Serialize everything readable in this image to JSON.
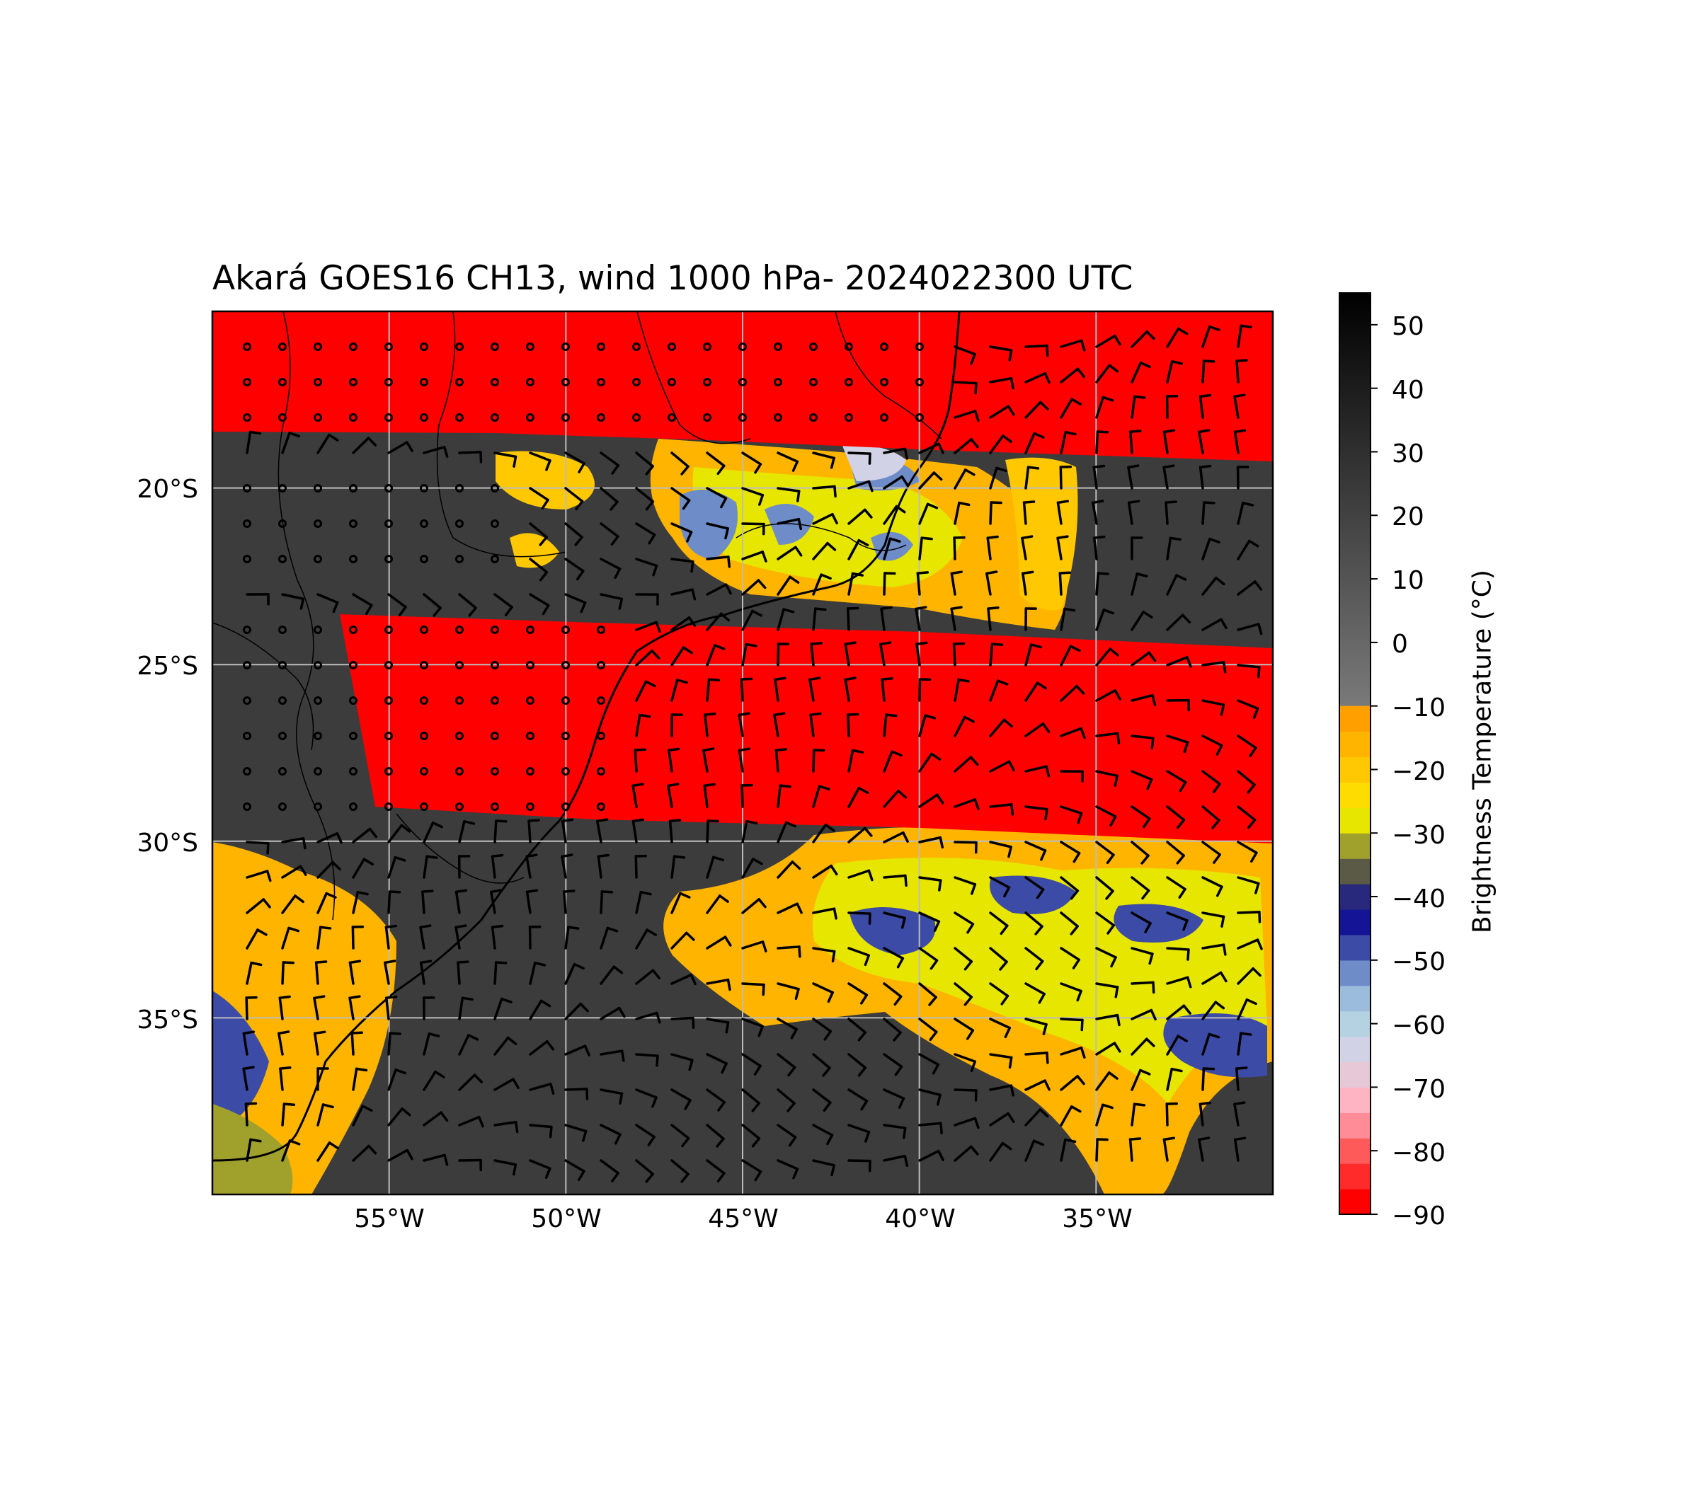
{
  "title": "Akará GOES16 CH13, wind 1000 hPa- 2024022300 UTC",
  "map": {
    "lon_range": [
      -60,
      -30
    ],
    "lat_range": [
      -40,
      -15
    ],
    "lat_ticks": [
      {
        "value": -20,
        "label": "20°S"
      },
      {
        "value": -25,
        "label": "25°S"
      },
      {
        "value": -30,
        "label": "30°S"
      },
      {
        "value": -35,
        "label": "35°S"
      }
    ],
    "lon_ticks": [
      {
        "value": -55,
        "label": "55°W"
      },
      {
        "value": -50,
        "label": "50°W"
      },
      {
        "value": -45,
        "label": "45°W"
      },
      {
        "value": -40,
        "label": "40°W"
      },
      {
        "value": -35,
        "label": "35°W"
      }
    ],
    "gridlines": true,
    "colors": {
      "no_data_swath": "#ff0000",
      "background_cloud_free": "#3c3c3c",
      "gridline": "#bdbdbd",
      "wind_barb": "#000000"
    },
    "layers": [
      "brightness temperature (GOES16 CH13)",
      "wind barbs 1000 hPa",
      "coastlines",
      "political borders"
    ]
  },
  "colorbar": {
    "label": "Brightness Temperature (°C)",
    "range": [
      -90,
      55
    ],
    "ticks": [
      "50",
      "40",
      "30",
      "20",
      "10",
      "0",
      "−10",
      "−20",
      "−30",
      "−40",
      "−50",
      "−60",
      "−70",
      "−80",
      "−90"
    ],
    "segments": [
      {
        "from": -90,
        "to": -86,
        "color": "#ff0000"
      },
      {
        "from": -86,
        "to": -82,
        "color": "#ff2a2a"
      },
      {
        "from": -82,
        "to": -78,
        "color": "#ff5a5a"
      },
      {
        "from": -78,
        "to": -74,
        "color": "#ff8c96"
      },
      {
        "from": -74,
        "to": -70,
        "color": "#ffb4c3"
      },
      {
        "from": -70,
        "to": -66,
        "color": "#e6c8d7"
      },
      {
        "from": -66,
        "to": -62,
        "color": "#d2d2e6"
      },
      {
        "from": -62,
        "to": -58,
        "color": "#b4d2e1"
      },
      {
        "from": -58,
        "to": -54,
        "color": "#9bbcdc"
      },
      {
        "from": -54,
        "to": -50,
        "color": "#6e8cc8"
      },
      {
        "from": -50,
        "to": -46,
        "color": "#3c4ba5"
      },
      {
        "from": -46,
        "to": -42,
        "color": "#141496"
      },
      {
        "from": -42,
        "to": -38,
        "color": "#28287d"
      },
      {
        "from": -38,
        "to": -34,
        "color": "#5a5a46"
      },
      {
        "from": -34,
        "to": -30,
        "color": "#a0a02d"
      },
      {
        "from": -30,
        "to": -26,
        "color": "#e6e600"
      },
      {
        "from": -26,
        "to": -22,
        "color": "#ffdc00"
      },
      {
        "from": -22,
        "to": -18,
        "color": "#ffc800"
      },
      {
        "from": -18,
        "to": -14,
        "color": "#ffb400"
      },
      {
        "from": -14,
        "to": -10,
        "color": "#ffa000"
      }
    ],
    "gray_ramp": {
      "from": -10,
      "to": 55,
      "color_low": "#7a7a7a",
      "color_high": "#000000"
    }
  }
}
